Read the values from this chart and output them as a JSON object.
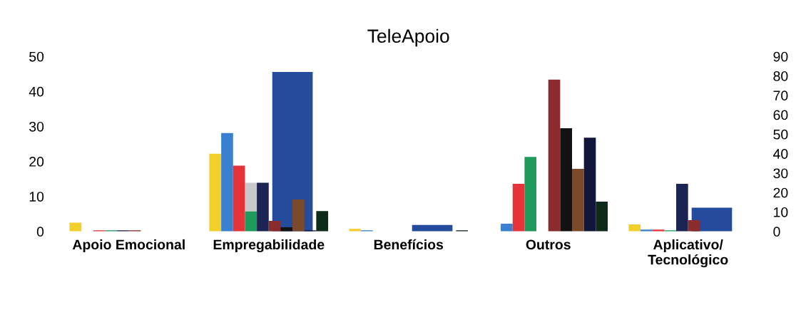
{
  "chart_data": {
    "type": "bar",
    "title": "TeleApoio",
    "categories": [
      "Apoio Emocional",
      "Empregabilidade",
      "Benefícios",
      "Outros",
      "Aplicativo/\nTecnológico"
    ],
    "series": [
      {
        "color": "#f2cf2a",
        "values": [
          2.5,
          22.2,
          0.7,
          0,
          2.0
        ]
      },
      {
        "color": "#3a7fd0",
        "values": [
          0,
          28.1,
          0.3,
          2.2,
          0.5
        ]
      },
      {
        "color": "#e5333a",
        "values": [
          0.3,
          18.8,
          0,
          13.6,
          0.5
        ]
      },
      {
        "color": "#1e9a5a",
        "values": [
          0.3,
          5.7,
          0,
          21.3,
          0.3
        ]
      },
      {
        "color": "#c9c9c9",
        "base": [
          null,
          5.7,
          null,
          null,
          null
        ],
        "values": [
          null,
          8.2,
          null,
          null,
          null
        ]
      },
      {
        "color": "#1b2452",
        "values": [
          0.3,
          13.9,
          0,
          0,
          13.6
        ]
      },
      {
        "color": "#8a2b2d",
        "values": [
          0.3,
          3.0,
          0,
          43.4,
          3.2
        ]
      },
      {
        "color": "#121212",
        "values": [
          0,
          1.2,
          0,
          29.5,
          0
        ]
      },
      {
        "color": "#7a4a2b",
        "values": [
          0,
          9.1,
          0,
          17.9,
          0
        ]
      },
      {
        "color": "#11163a",
        "values": [
          0,
          0.3,
          0,
          26.8,
          0
        ]
      },
      {
        "color": "#0e2a18",
        "values": [
          0,
          5.8,
          0.3,
          8.5,
          0
        ]
      },
      {
        "color": "#254b9c",
        "axis": "y2",
        "values": [
          0,
          82,
          3.3,
          0,
          12.2
        ]
      }
    ],
    "ylim": [
      0,
      50
    ],
    "yticks": [
      0,
      10,
      20,
      30,
      40,
      50
    ],
    "y2lim": [
      0,
      90
    ],
    "y2ticks": [
      0,
      10,
      20,
      30,
      40,
      50,
      60,
      70,
      80,
      90
    ],
    "grid": false,
    "legend": false
  }
}
